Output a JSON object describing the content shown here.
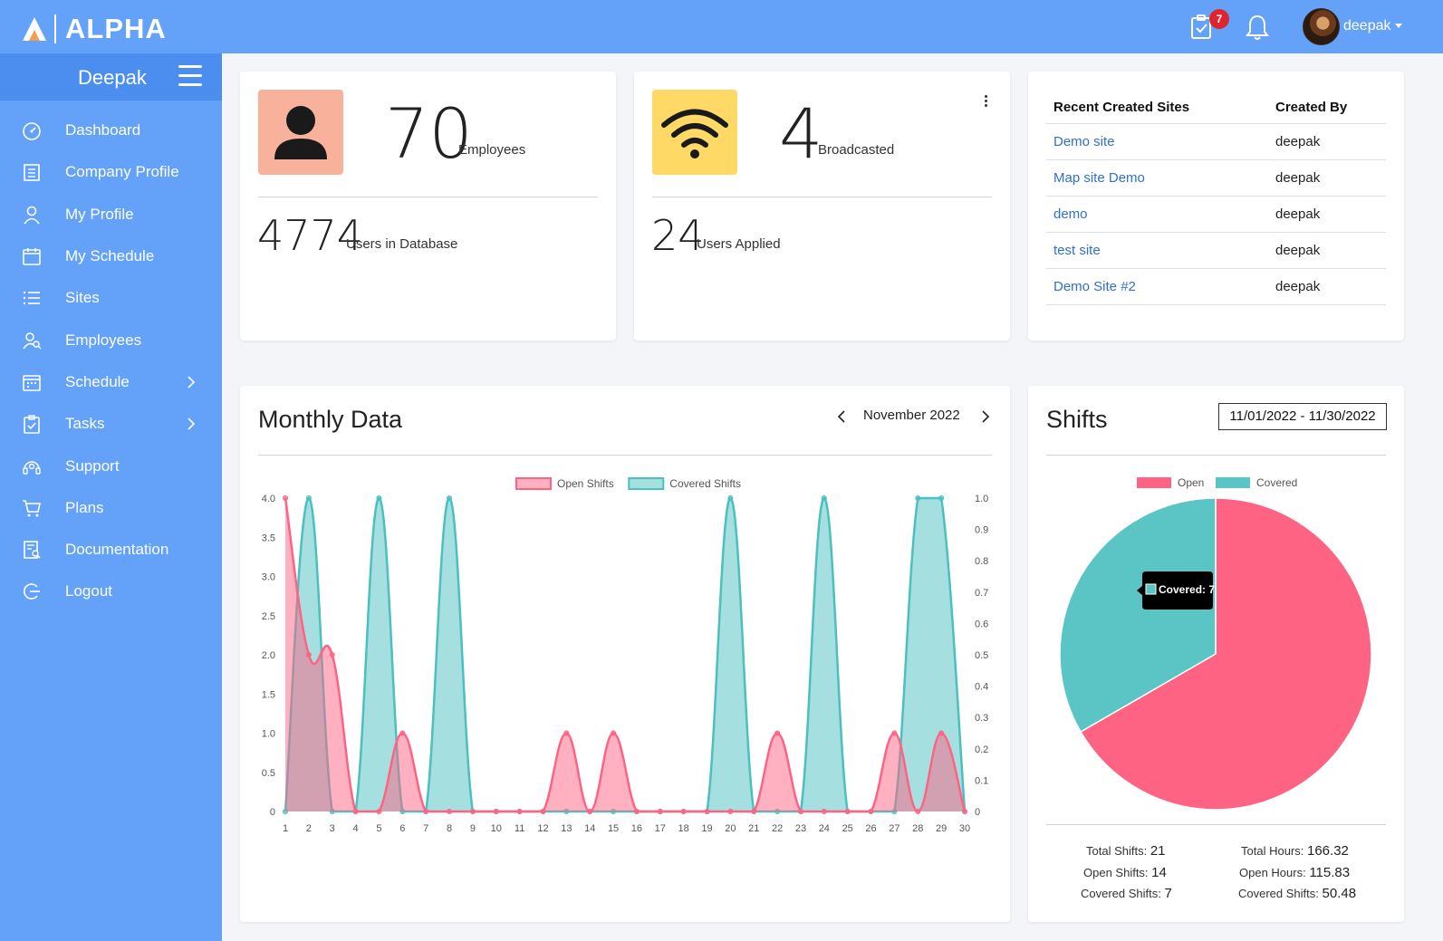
{
  "app": {
    "name": "ALPHA"
  },
  "header": {
    "tasks_badge": "7",
    "user_name": "deepak"
  },
  "sidebar": {
    "title": "Deepak",
    "items": [
      {
        "label": "Dashboard",
        "icon": "dashboard-icon"
      },
      {
        "label": "Company Profile",
        "icon": "company-icon"
      },
      {
        "label": "My Profile",
        "icon": "user-icon"
      },
      {
        "label": "My Schedule",
        "icon": "calendar-icon"
      },
      {
        "label": "Sites",
        "icon": "list-icon"
      },
      {
        "label": "Employees",
        "icon": "employees-icon"
      },
      {
        "label": "Schedule",
        "icon": "schedule-icon",
        "has_submenu": true
      },
      {
        "label": "Tasks",
        "icon": "tasks-icon",
        "has_submenu": true
      },
      {
        "label": "Support",
        "icon": "support-icon"
      },
      {
        "label": "Plans",
        "icon": "cart-icon"
      },
      {
        "label": "Documentation",
        "icon": "documentation-icon"
      },
      {
        "label": "Logout",
        "icon": "logout-icon"
      }
    ]
  },
  "employees_card": {
    "count": "70",
    "count_label": "Employees",
    "db_count": "4774",
    "db_label": "Users in Database",
    "icon_color": "#f8b29c"
  },
  "broadcast_card": {
    "count": "4",
    "count_label": "Broadcasted",
    "applied_count": "24",
    "applied_label": "Users Applied",
    "icon_color": "#ffd966"
  },
  "sites_card": {
    "headers": [
      "Recent Created Sites",
      "Created By"
    ],
    "rows": [
      {
        "site": "Demo site",
        "created_by": "deepak"
      },
      {
        "site": "Map site Demo",
        "created_by": "deepak"
      },
      {
        "site": "demo",
        "created_by": "deepak"
      },
      {
        "site": "test site",
        "created_by": "deepak"
      },
      {
        "site": "Demo Site #2",
        "created_by": "deepak"
      }
    ]
  },
  "monthly": {
    "title": "Monthly Data",
    "month": "November 2022"
  },
  "shifts": {
    "title": "Shifts",
    "date_range": "11/01/2022 - 11/30/2022",
    "tooltip": "Covered: 7",
    "summary": {
      "total_shifts_label": "Total Shifts:",
      "total_shifts": "21",
      "open_shifts_label": "Open Shifts:",
      "open_shifts": "14",
      "covered_shifts_label": "Covered Shifts:",
      "covered_shifts": "7",
      "total_hours_label": "Total Hours:",
      "total_hours": "166.32",
      "open_hours_label": "Open Hours:",
      "open_hours": "115.83",
      "covered_hours_label": "Covered Shifts:",
      "covered_hours": "50.48"
    }
  },
  "chart_data": [
    {
      "type": "area",
      "x": [
        1,
        2,
        3,
        4,
        5,
        6,
        7,
        8,
        9,
        10,
        11,
        12,
        13,
        14,
        15,
        16,
        17,
        18,
        19,
        20,
        21,
        22,
        23,
        24,
        25,
        26,
        27,
        28,
        29,
        30
      ],
      "series": [
        {
          "name": "Open Shifts",
          "axis": "left",
          "color": "#ff6384",
          "values": [
            4,
            2,
            2,
            0,
            0,
            1,
            0,
            0,
            0,
            0,
            0,
            0,
            1,
            0,
            1,
            0,
            0,
            0,
            0,
            0,
            0,
            1,
            0,
            0,
            0,
            0,
            1,
            0,
            1,
            0
          ]
        },
        {
          "name": "Covered Shifts",
          "axis": "right",
          "color": "#4bc0c0",
          "values": [
            0,
            1,
            0,
            0,
            1,
            0,
            0,
            1,
            0,
            0,
            0,
            0,
            0,
            0,
            0,
            0,
            0,
            0,
            0,
            1,
            0,
            0,
            0,
            1,
            0,
            0,
            0,
            1,
            1,
            0
          ]
        }
      ],
      "y_left": {
        "ylim": [
          0,
          4
        ],
        "ticks": [
          "0",
          "0.5",
          "1.0",
          "1.5",
          "2.0",
          "2.5",
          "3.0",
          "3.5",
          "4.0"
        ]
      },
      "y_right": {
        "ylim": [
          0,
          1
        ],
        "ticks": [
          "0",
          "0.1",
          "0.2",
          "0.3",
          "0.4",
          "0.5",
          "0.6",
          "0.7",
          "0.8",
          "0.9",
          "1.0"
        ]
      },
      "legend": "top-center"
    },
    {
      "type": "pie",
      "categories": [
        "Open",
        "Covered"
      ],
      "values": [
        14,
        7
      ],
      "colors": [
        "#ff6384",
        "#5bc4c4"
      ],
      "legend": "top-center"
    }
  ]
}
